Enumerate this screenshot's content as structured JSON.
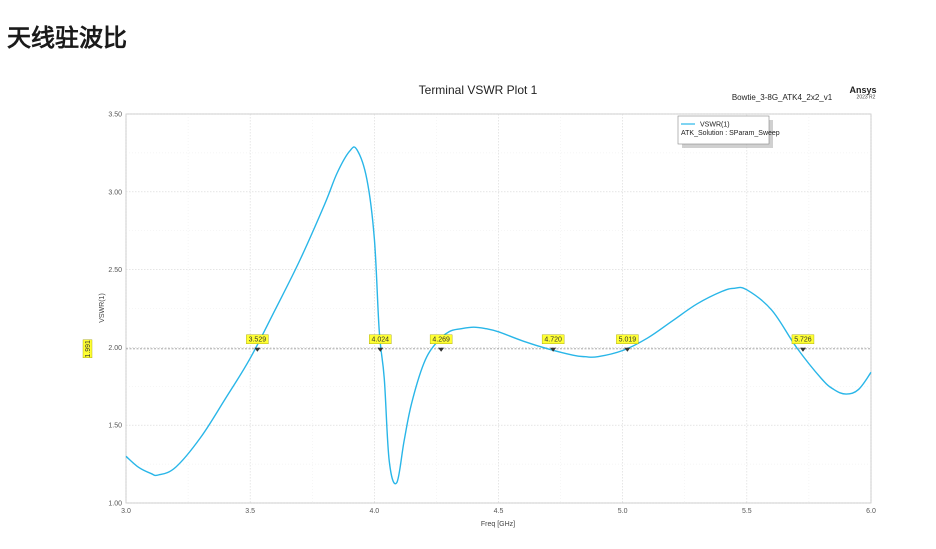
{
  "page": {
    "heading": "天线驻波比"
  },
  "chart_data": {
    "type": "line",
    "title": "Terminal VSWR Plot 1",
    "design_name": "Bowtie_3-8G_ATK4_2x2_v1",
    "brand": "Ansys",
    "version": "2023 R2",
    "xlabel": "Freq [GHz]",
    "ylabel": "VSWR(1)",
    "xlim": [
      3.0,
      6.0
    ],
    "ylim": [
      1.0,
      3.5
    ],
    "xticks": [
      "3.0",
      "3.5",
      "4.0",
      "4.5",
      "5.0",
      "5.5",
      "6.0"
    ],
    "yticks": [
      "1.00",
      "1.50",
      "2.00",
      "2.50",
      "3.00",
      "3.50"
    ],
    "grid": true,
    "legend": {
      "position": "top-right",
      "entries": [
        "VSWR(1)"
      ],
      "subtitle": "ATK_Solution : SParam_Sweep"
    },
    "reference_line": {
      "y": 1.991,
      "label": "1.991"
    },
    "markers": [
      {
        "x": 3.529,
        "label": "3.529"
      },
      {
        "x": 4.024,
        "label": "4.024"
      },
      {
        "x": 4.269,
        "label": "4.269"
      },
      {
        "x": 4.72,
        "label": "4.720"
      },
      {
        "x": 5.019,
        "label": "5.019"
      },
      {
        "x": 5.726,
        "label": "5.726"
      }
    ],
    "series": [
      {
        "name": "VSWR(1)",
        "color": "#29b6e8",
        "x": [
          3.0,
          3.05,
          3.1,
          3.13,
          3.2,
          3.3,
          3.4,
          3.5,
          3.6,
          3.7,
          3.8,
          3.85,
          3.9,
          3.93,
          3.97,
          4.0,
          4.02,
          4.04,
          4.06,
          4.09,
          4.12,
          4.15,
          4.2,
          4.25,
          4.3,
          4.35,
          4.4,
          4.45,
          4.5,
          4.6,
          4.7,
          4.8,
          4.85,
          4.9,
          5.0,
          5.1,
          5.2,
          5.3,
          5.4,
          5.45,
          5.5,
          5.6,
          5.7,
          5.8,
          5.85,
          5.9,
          5.95,
          6.0
        ],
        "y": [
          1.3,
          1.23,
          1.19,
          1.18,
          1.23,
          1.42,
          1.67,
          1.93,
          2.24,
          2.56,
          2.92,
          3.12,
          3.26,
          3.27,
          3.08,
          2.7,
          2.1,
          1.8,
          1.27,
          1.13,
          1.4,
          1.64,
          1.9,
          2.03,
          2.1,
          2.12,
          2.13,
          2.12,
          2.1,
          2.04,
          1.99,
          1.95,
          1.94,
          1.94,
          1.98,
          2.06,
          2.17,
          2.28,
          2.36,
          2.38,
          2.37,
          2.24,
          2.0,
          1.8,
          1.73,
          1.7,
          1.73,
          1.84
        ]
      }
    ]
  }
}
